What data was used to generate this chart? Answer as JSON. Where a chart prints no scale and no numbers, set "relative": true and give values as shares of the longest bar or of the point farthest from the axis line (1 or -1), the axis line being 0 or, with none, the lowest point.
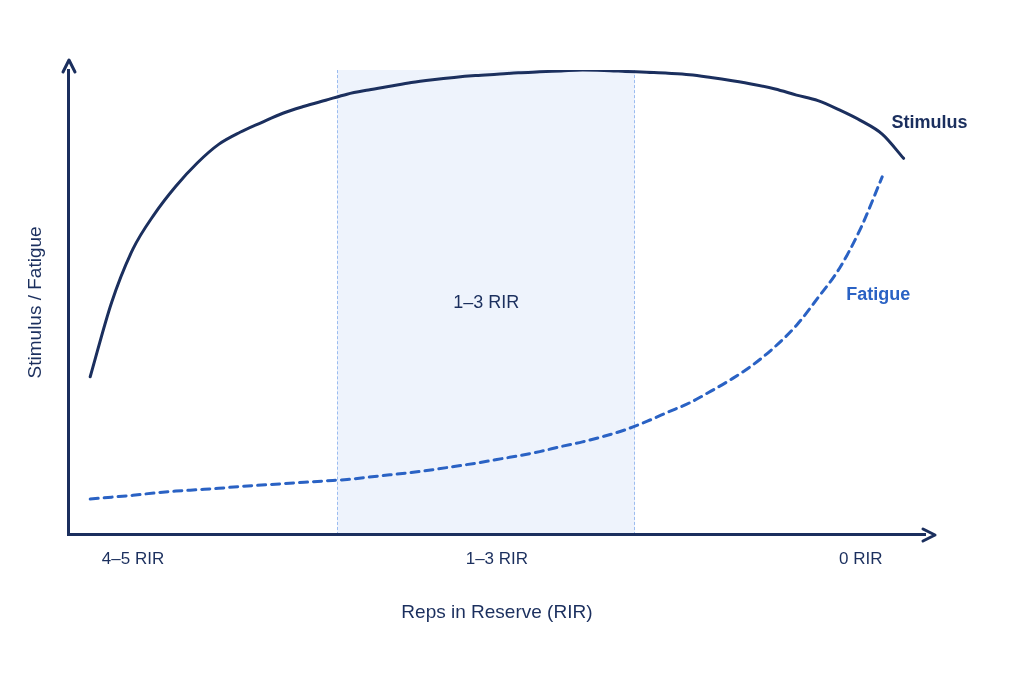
{
  "chart_data": {
    "type": "line",
    "relative": true,
    "xlabel": "Reps in Reserve (RIR)",
    "ylabel": "Stimulus / Fatigue",
    "categories": [
      null,
      null,
      null,
      "4–5 RIR",
      null,
      null,
      null,
      null,
      null,
      null,
      null,
      null,
      null,
      null,
      null,
      null,
      null,
      null,
      null,
      null,
      "1–3 RIR",
      null,
      null,
      null,
      null,
      null,
      null,
      null,
      null,
      null,
      null,
      null,
      null,
      null,
      null,
      null,
      null,
      "0 RIR",
      null,
      null,
      null
    ],
    "series": [
      {
        "name": "Stimulus",
        "color": "#1b2f5e",
        "line_style": "solid",
        "values": [
          null,
          0.34,
          0.5,
          0.615,
          0.69,
          0.75,
          0.8,
          0.84,
          0.866,
          0.887,
          0.907,
          0.922,
          0.935,
          0.948,
          0.957,
          0.965,
          0.973,
          0.979,
          0.984,
          0.988,
          0.991,
          0.994,
          0.996,
          0.998,
          1,
          0.999,
          0.997,
          0.995,
          0.993,
          0.99,
          0.984,
          0.977,
          0.969,
          0.959,
          0.946,
          0.934,
          0.914,
          0.891,
          0.862,
          0.81,
          null
        ]
      },
      {
        "name": "Fatigue",
        "color": "#2a62c4",
        "line_style": "dashed",
        "values": [
          null,
          0.077,
          0.081,
          0.085,
          0.09,
          0.094,
          0.097,
          0.1,
          0.104,
          0.107,
          0.11,
          0.113,
          0.116,
          0.119,
          0.124,
          0.129,
          0.134,
          0.14,
          0.147,
          0.154,
          0.162,
          0.17,
          0.179,
          0.19,
          0.2,
          0.212,
          0.226,
          0.244,
          0.264,
          0.284,
          0.309,
          0.336,
          0.367,
          0.405,
          0.451,
          0.51,
          0.573,
          0.66,
          0.77,
          null,
          null
        ]
      }
    ],
    "annotations": [
      "1–3 RIR"
    ],
    "grid": false,
    "legend": false,
    "marker": "none"
  }
}
